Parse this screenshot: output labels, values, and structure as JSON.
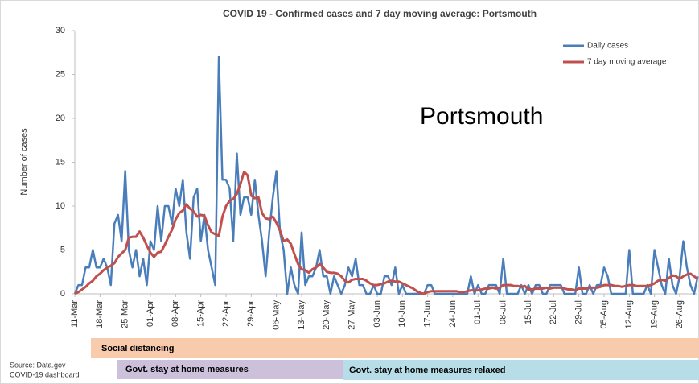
{
  "chart_data": {
    "type": "line",
    "title": "COVID 19 - Confirmed cases and 7 day moving average: Portsmouth",
    "ylabel": "Number of cases",
    "categories": [
      "11-Mar",
      null,
      null,
      null,
      null,
      null,
      null,
      "18-Mar",
      null,
      null,
      null,
      null,
      null,
      null,
      "25-Mar",
      null,
      null,
      null,
      null,
      null,
      null,
      "01-Apr",
      null,
      null,
      null,
      null,
      null,
      null,
      "08-Apr",
      null,
      null,
      null,
      null,
      null,
      null,
      "15-Apr",
      null,
      null,
      null,
      null,
      null,
      null,
      "22-Apr",
      null,
      null,
      null,
      null,
      null,
      null,
      "29-Apr",
      null,
      null,
      null,
      null,
      null,
      null,
      "06-May",
      null,
      null,
      null,
      null,
      null,
      null,
      "13-May",
      null,
      null,
      null,
      null,
      null,
      null,
      "20-May",
      null,
      null,
      null,
      null,
      null,
      null,
      "27-May",
      null,
      null,
      null,
      null,
      null,
      null,
      "03-Jun",
      null,
      null,
      null,
      null,
      null,
      null,
      "10-Jun",
      null,
      null,
      null,
      null,
      null,
      null,
      "17-Jun",
      null,
      null,
      null,
      null,
      null,
      null,
      "24-Jun",
      null,
      null,
      null,
      null,
      null,
      null,
      "01-Jul",
      null,
      null,
      null,
      null,
      null,
      null,
      "08-Jul",
      null,
      null,
      null,
      null,
      null,
      null,
      "15-Jul",
      null,
      null,
      null,
      null,
      null,
      null,
      "22-Jul",
      null,
      null,
      null,
      null,
      null,
      null,
      "29-Jul",
      null,
      null,
      null,
      null,
      null,
      null,
      "05-Aug",
      null,
      null,
      null,
      null,
      null,
      null,
      "12-Aug",
      null,
      null,
      null,
      null,
      null,
      null,
      "19-Aug",
      null,
      null,
      null,
      null,
      null,
      null,
      "26-Aug",
      null,
      null,
      null,
      null,
      null
    ],
    "series": [
      {
        "name": "Daily cases",
        "color": "#4a7ebb",
        "values": [
          0,
          1,
          1,
          3,
          3,
          5,
          3,
          3,
          4,
          3,
          1,
          8,
          9,
          6,
          14,
          5,
          3,
          5,
          2,
          4,
          1,
          6,
          5,
          10,
          6,
          10,
          10,
          8,
          12,
          10,
          13,
          7,
          4,
          11,
          12,
          6,
          9,
          5,
          3,
          1,
          27,
          13,
          13,
          12,
          6,
          16,
          9,
          11,
          11,
          9,
          13,
          9,
          6,
          2,
          7,
          11,
          14,
          7,
          5,
          0,
          3,
          1,
          0,
          7,
          1,
          2,
          2,
          3,
          5,
          2,
          2,
          0,
          2,
          1,
          0,
          1,
          3,
          2,
          4,
          1,
          1,
          0,
          0,
          1,
          0,
          0,
          2,
          2,
          1,
          3,
          0,
          1,
          0,
          0,
          0,
          0,
          0,
          0,
          1,
          1,
          0,
          0,
          0,
          0,
          0,
          0,
          0,
          0,
          0,
          0,
          2,
          0,
          1,
          0,
          0,
          1,
          1,
          1,
          0,
          4,
          0,
          0,
          0,
          0,
          1,
          0,
          1,
          0,
          1,
          1,
          0,
          0,
          1,
          1,
          1,
          1,
          0,
          0,
          0,
          0,
          3,
          0,
          0,
          1,
          0,
          1,
          1,
          3,
          2,
          0,
          0,
          0,
          0,
          0,
          5,
          0,
          0,
          0,
          0,
          1,
          0,
          5,
          3,
          1,
          0,
          4,
          1,
          0,
          2,
          6,
          3,
          1,
          0,
          2
        ]
      },
      {
        "name": "7 day moving average",
        "color": "#c0504d",
        "values": [
          0,
          0.2,
          0.5,
          0.8,
          1.2,
          1.5,
          2,
          2.3,
          2.7,
          3,
          3.2,
          3.5,
          4.2,
          4.6,
          5,
          6.4,
          6.5,
          6.5,
          7.1,
          6.4,
          5.5,
          4.7,
          4.2,
          4.7,
          4.8,
          5.6,
          6.5,
          7.3,
          8.5,
          9.2,
          9.5,
          10.2,
          9.7,
          9.4,
          8.8,
          9,
          8.9,
          7.8,
          7,
          6.8,
          6.6,
          8.8,
          10,
          10.6,
          10.8,
          11.4,
          12.5,
          13.9,
          13.5,
          11.2,
          10.9,
          11,
          9.2,
          8.6,
          8.5,
          8.8,
          8.1,
          7.2,
          6,
          6.2,
          5.7,
          4.5,
          3.4,
          2.8,
          2.7,
          2.4,
          2.8,
          3,
          3.4,
          3,
          2.5,
          2.4,
          2.4,
          2.3,
          2,
          1.5,
          1.3,
          1.6,
          1.7,
          1.7,
          1.7,
          1.5,
          1.2,
          1,
          1,
          1.1,
          1.2,
          1.4,
          1.5,
          1.4,
          1.4,
          1.2,
          1,
          0.8,
          0.6,
          0.3,
          0.1,
          0,
          0.2,
          0.3,
          0.3,
          0.3,
          0.3,
          0.3,
          0.3,
          0.3,
          0.3,
          0.2,
          0.2,
          0.3,
          0.4,
          0.4,
          0.4,
          0.5,
          0.6,
          0.6,
          0.7,
          0.6,
          0.7,
          1,
          1,
          1,
          0.9,
          0.9,
          0.8,
          0.9,
          0.5,
          0.5,
          0.6,
          0.6,
          0.6,
          0.7,
          0.6,
          0.7,
          0.7,
          0.7,
          0.6,
          0.5,
          0.5,
          0.4,
          0.6,
          0.6,
          0.6,
          0.7,
          0.7,
          0.7,
          0.8,
          1,
          1,
          1,
          0.9,
          0.9,
          0.8,
          0.9,
          1,
          1,
          0.9,
          0.9,
          0.9,
          0.9,
          1,
          1.2,
          1.5,
          1.6,
          1.5,
          1.8,
          2.1,
          2,
          1.7,
          2,
          2.2,
          2.3,
          2,
          1.7
        ]
      }
    ],
    "ylim": [
      0,
      30
    ],
    "yticks": [
      0,
      5,
      10,
      15,
      20,
      25,
      30
    ],
    "grid": false,
    "legend": "upper right",
    "annotation": "Portsmouth",
    "phases": [
      "Social distancing",
      "Govt. stay at home measures",
      "Govt. stay at home measures relaxed"
    ],
    "source": [
      "Source: Data.gov",
      "COVID-19 dashboard"
    ]
  }
}
